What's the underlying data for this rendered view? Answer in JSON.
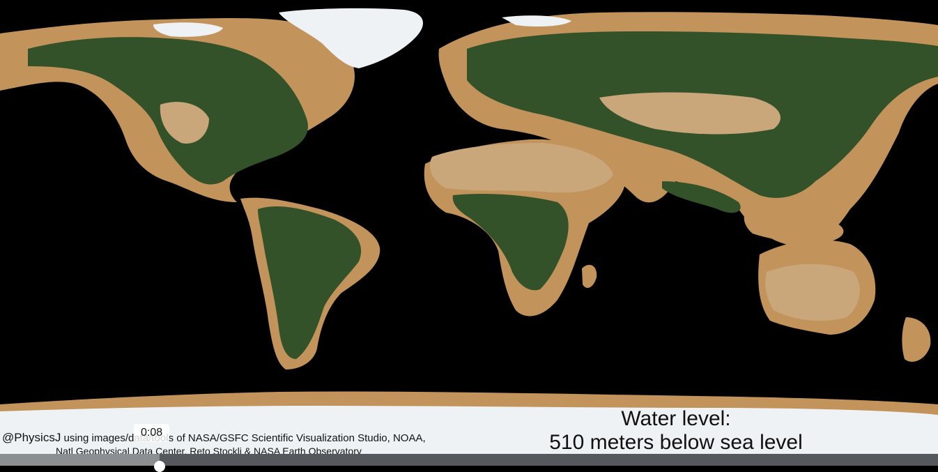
{
  "map": {
    "title": "World map — 510 meters below sea level",
    "ocean_color": "#000000",
    "exposed_shelf_color": "#c2935a",
    "vegetation_color": "#34522a",
    "desert_color": "#c9a77a",
    "ice_color": "#eef2f4"
  },
  "overlay": {
    "credit_handle": "@PhysicsJ",
    "credit_line1": " using images/data/tools of NASA/GSFC Scientific Visualization Studio, NOAA,",
    "credit_line2": "Natl Geophysical Data Center, Reto Stockli & NASA Earth Observatory",
    "water_level_title": "Water level:",
    "water_level_value": "510 meters below sea level"
  },
  "player": {
    "time_tooltip": "0:08",
    "progress": 0.17
  }
}
